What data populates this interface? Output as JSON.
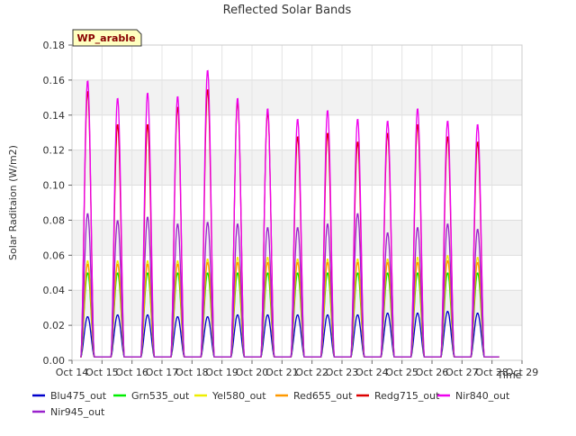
{
  "chart_data": {
    "type": "line",
    "title": "Reflected Solar Bands",
    "xlabel": "Time",
    "ylabel": "Solar Raditaion (W/m2)",
    "site_label": "WP_arable",
    "ylim": [
      0,
      0.18
    ],
    "xlim": [
      14,
      29
    ],
    "x_ticks": [
      {
        "value": 14,
        "label": "Oct 14"
      },
      {
        "value": 15,
        "label": "Oct 15"
      },
      {
        "value": 16,
        "label": "Oct 16"
      },
      {
        "value": 17,
        "label": "Oct 17"
      },
      {
        "value": 18,
        "label": "Oct 18"
      },
      {
        "value": 19,
        "label": "Oct 19"
      },
      {
        "value": 20,
        "label": "Oct 20"
      },
      {
        "value": 21,
        "label": "Oct 21"
      },
      {
        "value": 22,
        "label": "Oct 22"
      },
      {
        "value": 23,
        "label": "Oct 23"
      },
      {
        "value": 24,
        "label": "Oct 24"
      },
      {
        "value": 25,
        "label": "Oct 25"
      },
      {
        "value": 26,
        "label": "Oct 26"
      },
      {
        "value": 27,
        "label": "Oct 27"
      },
      {
        "value": 28,
        "label": "Oct 28"
      },
      {
        "value": 29,
        "label": "Oct 29"
      }
    ],
    "y_ticks": [
      {
        "value": 0,
        "label": "0.00"
      },
      {
        "value": 0.02,
        "label": "0.02"
      },
      {
        "value": 0.04,
        "label": "0.04"
      },
      {
        "value": 0.06,
        "label": "0.06"
      },
      {
        "value": 0.08,
        "label": "0.08"
      },
      {
        "value": 0.1,
        "label": "0.10"
      },
      {
        "value": 0.12,
        "label": "0.12"
      },
      {
        "value": 0.14,
        "label": "0.14"
      },
      {
        "value": 0.16,
        "label": "0.16"
      },
      {
        "value": 0.18,
        "label": "0.18"
      }
    ],
    "grid": true,
    "legend_position": "bottom",
    "day_peaks": [
      {
        "day": "Oct 14",
        "Blu475_out": 0.025,
        "Grn535_out": 0.05,
        "Yel580_out": 0.057,
        "Red655_out": 0.055,
        "Redg715_out": 0.154,
        "Nir840_out": 0.16,
        "Nir945_out": 0.084
      },
      {
        "day": "Oct 15",
        "Blu475_out": 0.026,
        "Grn535_out": 0.05,
        "Yel580_out": 0.057,
        "Red655_out": 0.055,
        "Redg715_out": 0.135,
        "Nir840_out": 0.15,
        "Nir945_out": 0.08
      },
      {
        "day": "Oct 16",
        "Blu475_out": 0.026,
        "Grn535_out": 0.05,
        "Yel580_out": 0.057,
        "Red655_out": 0.055,
        "Redg715_out": 0.135,
        "Nir840_out": 0.153,
        "Nir945_out": 0.082
      },
      {
        "day": "Oct 17",
        "Blu475_out": 0.025,
        "Grn535_out": 0.05,
        "Yel580_out": 0.057,
        "Red655_out": 0.055,
        "Redg715_out": 0.145,
        "Nir840_out": 0.151,
        "Nir945_out": 0.078
      },
      {
        "day": "Oct 18",
        "Blu475_out": 0.025,
        "Grn535_out": 0.05,
        "Yel580_out": 0.058,
        "Red655_out": 0.056,
        "Redg715_out": 0.155,
        "Nir840_out": 0.166,
        "Nir945_out": 0.079
      },
      {
        "day": "Oct 19",
        "Blu475_out": 0.026,
        "Grn535_out": 0.05,
        "Yel580_out": 0.059,
        "Red655_out": 0.056,
        "Redg715_out": 0.148,
        "Nir840_out": 0.15,
        "Nir945_out": 0.078
      },
      {
        "day": "Oct 20",
        "Blu475_out": 0.026,
        "Grn535_out": 0.05,
        "Yel580_out": 0.059,
        "Red655_out": 0.056,
        "Redg715_out": 0.142,
        "Nir840_out": 0.144,
        "Nir945_out": 0.076
      },
      {
        "day": "Oct 21",
        "Blu475_out": 0.026,
        "Grn535_out": 0.05,
        "Yel580_out": 0.058,
        "Red655_out": 0.056,
        "Redg715_out": 0.128,
        "Nir840_out": 0.138,
        "Nir945_out": 0.076
      },
      {
        "day": "Oct 22",
        "Blu475_out": 0.026,
        "Grn535_out": 0.05,
        "Yel580_out": 0.058,
        "Red655_out": 0.056,
        "Redg715_out": 0.13,
        "Nir840_out": 0.143,
        "Nir945_out": 0.078
      },
      {
        "day": "Oct 23",
        "Blu475_out": 0.026,
        "Grn535_out": 0.05,
        "Yel580_out": 0.058,
        "Red655_out": 0.056,
        "Redg715_out": 0.125,
        "Nir840_out": 0.138,
        "Nir945_out": 0.084
      },
      {
        "day": "Oct 24",
        "Blu475_out": 0.027,
        "Grn535_out": 0.05,
        "Yel580_out": 0.058,
        "Red655_out": 0.056,
        "Redg715_out": 0.13,
        "Nir840_out": 0.137,
        "Nir945_out": 0.073
      },
      {
        "day": "Oct 25",
        "Blu475_out": 0.027,
        "Grn535_out": 0.05,
        "Yel580_out": 0.059,
        "Red655_out": 0.056,
        "Redg715_out": 0.135,
        "Nir840_out": 0.144,
        "Nir945_out": 0.076
      },
      {
        "day": "Oct 26",
        "Blu475_out": 0.028,
        "Grn535_out": 0.05,
        "Yel580_out": 0.06,
        "Red655_out": 0.057,
        "Redg715_out": 0.128,
        "Nir840_out": 0.137,
        "Nir945_out": 0.078
      },
      {
        "day": "Oct 27",
        "Blu475_out": 0.027,
        "Grn535_out": 0.05,
        "Yel580_out": 0.059,
        "Red655_out": 0.056,
        "Redg715_out": 0.125,
        "Nir840_out": 0.135,
        "Nir945_out": 0.075
      }
    ],
    "night_baseline": 0.002,
    "series": [
      {
        "name": "Blu475_out",
        "color": "#0000cc"
      },
      {
        "name": "Grn535_out",
        "color": "#00ee00"
      },
      {
        "name": "Yel580_out",
        "color": "#eeee00"
      },
      {
        "name": "Red655_out",
        "color": "#ff9900"
      },
      {
        "name": "Redg715_out",
        "color": "#dd0000"
      },
      {
        "name": "Nir840_out",
        "color": "#ee00ee"
      },
      {
        "name": "Nir945_out",
        "color": "#9922cc"
      }
    ]
  }
}
